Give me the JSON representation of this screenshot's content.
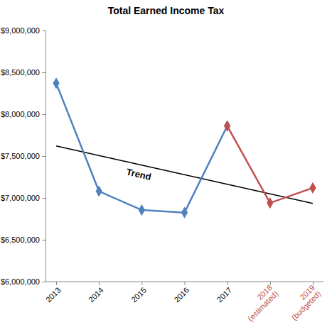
{
  "chart_data": {
    "type": "line",
    "title": "Total Earned Income Tax",
    "categories": [
      "2013",
      "2014",
      "2015",
      "2016",
      "2017",
      "2018\n(estimated)",
      "2019\n(budgeted)"
    ],
    "series": [
      {
        "color": "#4f81bd",
        "marker": "diamond",
        "line_style": "solid",
        "values": [
          8370000,
          7080000,
          6855000,
          6825000,
          7860000,
          null,
          null
        ]
      },
      {
        "color": "#c0504d",
        "marker": "diamond",
        "line_style": "solid",
        "values": [
          null,
          null,
          null,
          null,
          7860000,
          6940000,
          7120000
        ]
      }
    ],
    "trend": {
      "label": "Trend",
      "color": "#000000",
      "values": [
        7620000,
        6935000
      ]
    },
    "ylim": [
      6000000,
      9000000
    ],
    "yticks": [
      {
        "value": 6000000,
        "label": "$6,000,000"
      },
      {
        "value": 6500000,
        "label": "$6,500,000"
      },
      {
        "value": 7000000,
        "label": "$7,000,000"
      },
      {
        "value": 7500000,
        "label": "$7,500,000"
      },
      {
        "value": 8000000,
        "label": "$8,000,000"
      },
      {
        "value": 8500000,
        "label": "$8,500,000"
      },
      {
        "value": 9000000,
        "label": "$9,000,000"
      }
    ],
    "grid": false
  }
}
